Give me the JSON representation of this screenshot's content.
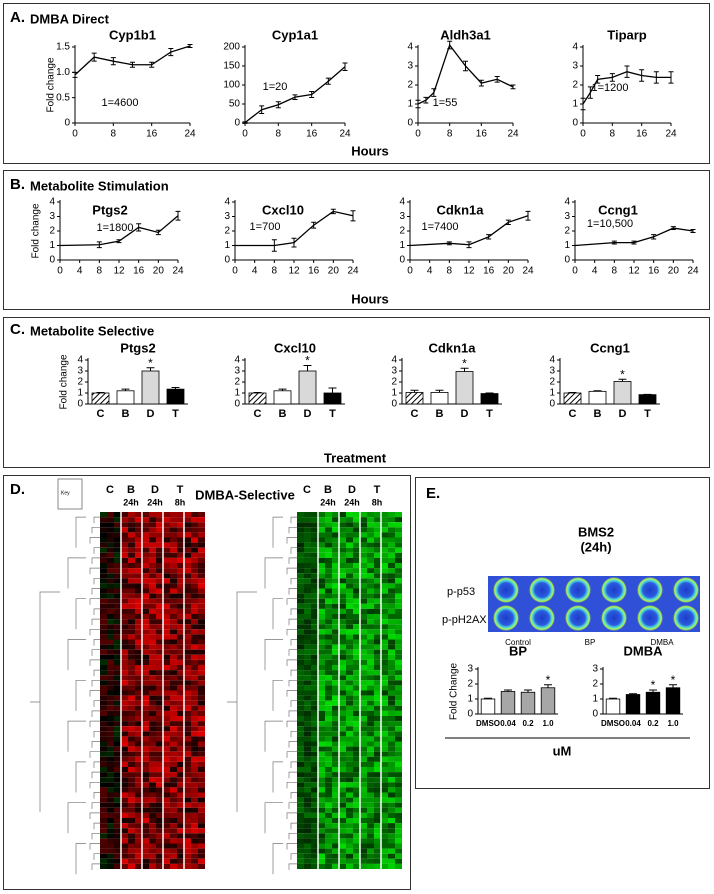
{
  "panels": {
    "A": {
      "letter": "A.",
      "title": "DMBA Direct",
      "xlabel": "Hours"
    },
    "B": {
      "letter": "B.",
      "title": "Metabolite Stimulation",
      "xlabel": "Hours"
    },
    "C": {
      "letter": "C.",
      "title": "Metabolite Selective",
      "xlabel": "Treatment"
    },
    "D": {
      "letter": "D.",
      "title": "DMBA-Selective",
      "key": "Key",
      "columns": [
        "C",
        "B",
        "D",
        "T"
      ],
      "times": [
        "24h",
        "24h",
        "8h"
      ]
    },
    "E": {
      "letter": "E.",
      "title": "BMS2",
      "subtitle": "(24h)",
      "rows": [
        "p-p53",
        "p-pH2AX"
      ],
      "groups": [
        "Control",
        "BP",
        "DMBA"
      ],
      "xlabel": "uM"
    }
  },
  "chart_data": [
    {
      "type": "line",
      "title": "Cyp1b1",
      "ylabel": "Fold change",
      "note": "1=4600",
      "x": [
        0,
        4,
        8,
        12,
        16,
        20,
        24
      ],
      "values": [
        0.95,
        1.3,
        1.22,
        1.15,
        1.15,
        1.4,
        1.52
      ],
      "errors": [
        0.05,
        0.08,
        0.07,
        0.05,
        0.05,
        0.07,
        0.03
      ],
      "xlim": [
        0,
        24
      ],
      "xticks": [
        0,
        8,
        16,
        24
      ],
      "ylim": [
        0,
        1.5
      ],
      "yticks": [
        0,
        0.5,
        {
          "value": 1,
          "label": "1.0"
        },
        1.5
      ]
    },
    {
      "type": "line",
      "title": "Cyp1a1",
      "note": "1=20",
      "x": [
        0,
        4,
        8,
        12,
        16,
        20,
        24
      ],
      "values": [
        1,
        35,
        48,
        68,
        75,
        110,
        148
      ],
      "errors": [
        2,
        10,
        8,
        6,
        8,
        8,
        10
      ],
      "xlim": [
        0,
        24
      ],
      "xticks": [
        0,
        8,
        16,
        24
      ],
      "ylim": [
        0,
        200
      ],
      "yticks": [
        0,
        50,
        100,
        150,
        200
      ]
    },
    {
      "type": "line",
      "title": "Aldh3a1",
      "note": "1=55",
      "x": [
        0,
        2,
        4,
        8,
        12,
        16,
        20,
        24
      ],
      "values": [
        1,
        1.2,
        1.6,
        4.1,
        3.0,
        2.1,
        2.3,
        1.9
      ],
      "errors": [
        0.2,
        0.15,
        0.2,
        0.2,
        0.25,
        0.15,
        0.15,
        0.1
      ],
      "xlim": [
        0,
        24
      ],
      "xticks": [
        0,
        8,
        16,
        24
      ],
      "ylim": [
        0,
        4
      ],
      "yticks": [
        0,
        1,
        2,
        3,
        4
      ]
    },
    {
      "type": "line",
      "title": "Tiparp",
      "note": "1=1200",
      "x": [
        0,
        2,
        4,
        8,
        12,
        16,
        20,
        24
      ],
      "values": [
        1,
        1.6,
        2.3,
        2.4,
        2.7,
        2.5,
        2.4,
        2.4
      ],
      "errors": [
        0.3,
        0.3,
        0.2,
        0.2,
        0.3,
        0.3,
        0.3,
        0.3
      ],
      "xlim": [
        0,
        24
      ],
      "xticks": [
        0,
        8,
        16,
        24
      ],
      "ylim": [
        0,
        4
      ],
      "yticks": [
        0,
        1,
        2,
        3,
        4
      ]
    },
    {
      "type": "line",
      "title": "Ptgs2",
      "ylabel": "Fold change",
      "note": "1=1800",
      "x": [
        0,
        8,
        12,
        16,
        20,
        24
      ],
      "values": [
        1,
        1.05,
        1.3,
        2.25,
        1.9,
        3.05
      ],
      "errors": [
        0,
        0.2,
        0.1,
        0.25,
        0.15,
        0.3
      ],
      "xlim": [
        0,
        24
      ],
      "xticks": [
        0,
        4,
        8,
        12,
        16,
        20,
        24
      ],
      "ylim": [
        0,
        4
      ],
      "yticks": [
        0,
        1,
        2,
        3,
        4
      ]
    },
    {
      "type": "line",
      "title": "Cxcl10",
      "note": "1=700",
      "x": [
        0,
        8,
        12,
        16,
        20,
        24
      ],
      "values": [
        1,
        1.0,
        1.2,
        2.4,
        3.35,
        3.05
      ],
      "errors": [
        0,
        0.4,
        0.3,
        0.2,
        0.15,
        0.35
      ],
      "xlim": [
        0,
        24
      ],
      "xticks": [
        0,
        4,
        8,
        12,
        16,
        20,
        24
      ],
      "ylim": [
        0,
        4
      ],
      "yticks": [
        0,
        1,
        2,
        3,
        4
      ]
    },
    {
      "type": "line",
      "title": "Cdkn1a",
      "note": "1=7400",
      "x": [
        0,
        8,
        12,
        16,
        20,
        24
      ],
      "values": [
        1,
        1.15,
        1.05,
        1.6,
        2.6,
        3.05
      ],
      "errors": [
        0,
        0.1,
        0.2,
        0.15,
        0.15,
        0.3
      ],
      "xlim": [
        0,
        24
      ],
      "xticks": [
        0,
        4,
        8,
        12,
        16,
        20,
        24
      ],
      "ylim": [
        0,
        4
      ],
      "yticks": [
        0,
        1,
        2,
        3,
        4
      ]
    },
    {
      "type": "line",
      "title": "Ccng1",
      "note": "1=10,500",
      "x": [
        0,
        8,
        12,
        16,
        20,
        24
      ],
      "values": [
        1,
        1.2,
        1.2,
        1.6,
        2.2,
        2.0
      ],
      "errors": [
        0,
        0.1,
        0.1,
        0.15,
        0.1,
        0.1
      ],
      "xlim": [
        0,
        24
      ],
      "xticks": [
        0,
        4,
        8,
        12,
        16,
        20,
        24
      ],
      "ylim": [
        0,
        4
      ],
      "yticks": [
        0,
        1,
        2,
        3,
        4
      ]
    },
    {
      "type": "bar",
      "title": "Ptgs2",
      "ylabel": "Fold change",
      "categories": [
        "C",
        "B",
        "D",
        "T"
      ],
      "values": [
        1.0,
        1.2,
        3.0,
        1.35
      ],
      "errors": [
        0.05,
        0.15,
        0.3,
        0.15
      ],
      "colors": [
        "#ffffff",
        "#ffffff",
        "#d9d9d9",
        "#000000"
      ],
      "hatch": [
        true,
        false,
        false,
        false
      ],
      "annotations": [
        {
          "text": "*",
          "category": "D"
        }
      ],
      "ylim": [
        0,
        4
      ],
      "yticks": [
        0,
        1,
        2,
        3,
        4
      ]
    },
    {
      "type": "bar",
      "title": "Cxcl10",
      "categories": [
        "C",
        "B",
        "D",
        "T"
      ],
      "values": [
        1.0,
        1.2,
        3.0,
        1.0
      ],
      "errors": [
        0.05,
        0.15,
        0.5,
        0.45
      ],
      "colors": [
        "#ffffff",
        "#ffffff",
        "#d9d9d9",
        "#000000"
      ],
      "hatch": [
        true,
        false,
        false,
        false
      ],
      "annotations": [
        {
          "text": "*",
          "category": "D"
        }
      ],
      "ylim": [
        0,
        4
      ],
      "yticks": [
        0,
        1,
        2,
        3,
        4
      ]
    },
    {
      "type": "bar",
      "title": "Cdkn1a",
      "categories": [
        "C",
        "B",
        "D",
        "T"
      ],
      "values": [
        1.05,
        1.05,
        2.95,
        0.95
      ],
      "errors": [
        0.2,
        0.2,
        0.3,
        0.05
      ],
      "colors": [
        "#ffffff",
        "#ffffff",
        "#d9d9d9",
        "#000000"
      ],
      "hatch": [
        true,
        false,
        false,
        false
      ],
      "annotations": [
        {
          "text": "*",
          "category": "D"
        }
      ],
      "ylim": [
        0,
        4
      ],
      "yticks": [
        0,
        1,
        2,
        3,
        4
      ]
    },
    {
      "type": "bar",
      "title": "Ccng1",
      "categories": [
        "C",
        "B",
        "D",
        "T"
      ],
      "values": [
        1.0,
        1.15,
        2.05,
        0.85
      ],
      "errors": [
        0.05,
        0.05,
        0.2,
        0.03
      ],
      "colors": [
        "#ffffff",
        "#ffffff",
        "#d9d9d9",
        "#000000"
      ],
      "hatch": [
        true,
        false,
        false,
        false
      ],
      "annotations": [
        {
          "text": "*",
          "category": "D"
        }
      ],
      "ylim": [
        0,
        4
      ],
      "yticks": [
        0,
        1,
        2,
        3,
        4
      ]
    },
    {
      "type": "bar",
      "title": "BP",
      "ylabel": "Fold Change",
      "categories": [
        "DMSO",
        "0.04",
        "0.2",
        "1.0"
      ],
      "values": [
        1.0,
        1.5,
        1.45,
        1.75
      ],
      "errors": [
        0.05,
        0.1,
        0.15,
        0.2
      ],
      "colors": [
        "#ffffff",
        "#a6a6a6",
        "#a6a6a6",
        "#a6a6a6"
      ],
      "hatch": [
        false,
        false,
        false,
        false
      ],
      "annotations": [
        {
          "text": "*",
          "category": "1.0"
        }
      ],
      "ylim": [
        0,
        3
      ],
      "yticks": [
        0,
        1,
        2,
        3
      ]
    },
    {
      "type": "bar",
      "title": "DMBA",
      "categories": [
        "DMSO",
        "0.04",
        "0.2",
        "1.0"
      ],
      "values": [
        1.0,
        1.3,
        1.45,
        1.75
      ],
      "errors": [
        0.05,
        0.05,
        0.15,
        0.2
      ],
      "colors": [
        "#ffffff",
        "#000000",
        "#000000",
        "#000000"
      ],
      "hatch": [
        false,
        false,
        false,
        false
      ],
      "annotations": [
        {
          "text": "*",
          "category": "0.2"
        },
        {
          "text": "*",
          "category": "1.0"
        }
      ],
      "ylim": [
        0,
        3
      ],
      "yticks": [
        0,
        1,
        2,
        3
      ]
    }
  ]
}
